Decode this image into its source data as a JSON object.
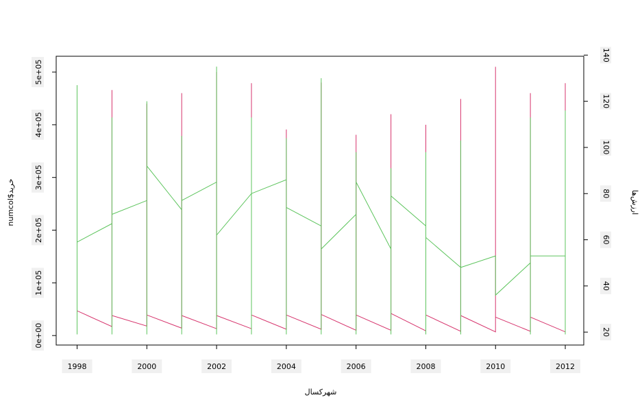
{
  "chart_data": {
    "type": "line",
    "xlabel": "شهرکسال",
    "ylabel": "numcol$خرید",
    "y2label": "ارزش‌ها",
    "xlim": [
      1997.4,
      2012.53
    ],
    "xticks": [
      1998,
      2000,
      2002,
      2004,
      2006,
      2008,
      2010,
      2012
    ],
    "ylim": [
      -18000,
      530000
    ],
    "yticks": [
      {
        "value": 0,
        "label": "0e+00"
      },
      {
        "value": 100000,
        "label": "1e+05"
      },
      {
        "value": 200000,
        "label": "2e+05"
      },
      {
        "value": 300000,
        "label": "3e+05"
      },
      {
        "value": 400000,
        "label": "4e+05"
      },
      {
        "value": 500000,
        "label": "5e+05"
      }
    ],
    "y2lim": [
      14.4,
      139.5
    ],
    "y2ticks": [
      20,
      40,
      60,
      80,
      100,
      120,
      140
    ],
    "series": [
      {
        "color": "#d6336c",
        "x": [
          1998,
          1998,
          1998,
          1999,
          1999,
          1999,
          2000,
          2000,
          2000,
          2001,
          2001,
          2001,
          2002,
          2002,
          2002,
          2003,
          2003,
          2003,
          2004,
          2004,
          2004,
          2005,
          2005,
          2005,
          2006,
          2006,
          2006,
          2007,
          2007,
          2007,
          2008,
          2008,
          2008,
          2009,
          2009,
          2009,
          2010,
          2010,
          2010,
          2011,
          2011,
          2011,
          2012,
          2012,
          2012
        ],
        "values": [
          3000,
          47000,
          47000,
          17000,
          466000,
          38000,
          18000,
          440000,
          39000,
          14000,
          460000,
          38000,
          13000,
          500000,
          38000,
          13000,
          479000,
          39000,
          12000,
          391000,
          39000,
          12000,
          480000,
          40000,
          10000,
          381000,
          39000,
          10000,
          420000,
          42000,
          9000,
          400000,
          39000,
          8000,
          449000,
          38000,
          7000,
          510000,
          35000,
          8000,
          460000,
          35000,
          7000,
          479000,
          7000
        ]
      },
      {
        "color": "#5cc45c",
        "axis": "y2",
        "x": [
          1998,
          1998,
          1998,
          1998,
          1999,
          1999,
          1999,
          1999,
          2000,
          2000,
          2000,
          2000,
          2001,
          2001,
          2001,
          2001,
          2002,
          2002,
          2002,
          2002,
          2003,
          2003,
          2003,
          2003,
          2004,
          2004,
          2004,
          2004,
          2005,
          2005,
          2005,
          2005,
          2006,
          2006,
          2006,
          2006,
          2007,
          2007,
          2007,
          2007,
          2008,
          2008,
          2008,
          2008,
          2009,
          2009,
          2009,
          2009,
          2010,
          2010,
          2010,
          2010,
          2011,
          2011,
          2011,
          2011,
          2012,
          2012,
          2012,
          2012
        ],
        "values": [
          60,
          19,
          127,
          59,
          67,
          19,
          113,
          71,
          77,
          19,
          120,
          92,
          73,
          19,
          105,
          77,
          85,
          19,
          135,
          62,
          80,
          19,
          113,
          80,
          86,
          19,
          104,
          74,
          66,
          19,
          130,
          56,
          71,
          19,
          98,
          85,
          56,
          19,
          91,
          79,
          66,
          19,
          98,
          61,
          48,
          19,
          103,
          48,
          53,
          36,
          53,
          36,
          50,
          19,
          113,
          53,
          53,
          19,
          116,
          32
        ]
      }
    ]
  }
}
